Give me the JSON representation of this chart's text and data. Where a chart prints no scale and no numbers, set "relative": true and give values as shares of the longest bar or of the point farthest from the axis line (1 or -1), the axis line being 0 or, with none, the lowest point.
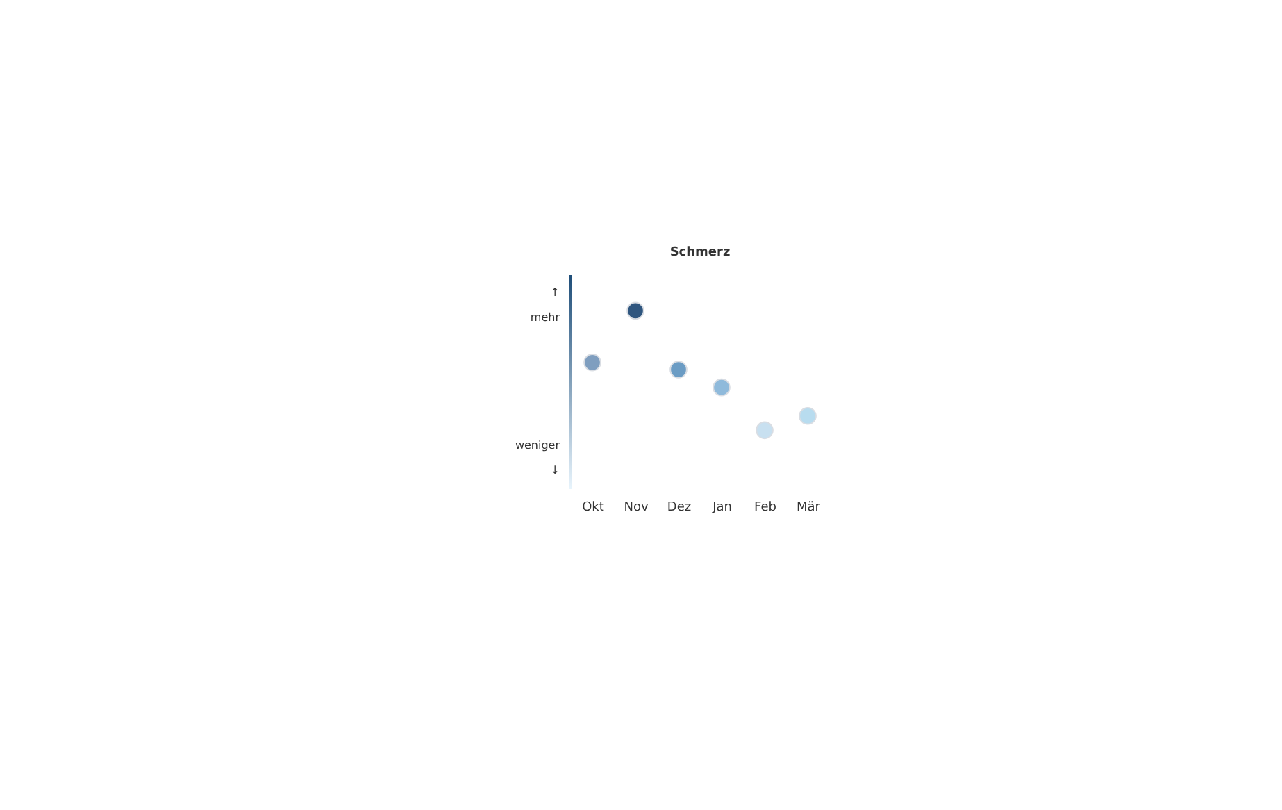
{
  "chart_data": {
    "type": "scatter",
    "title": "Schmerz",
    "relative": true,
    "marker": "circle",
    "categories": [
      "Okt",
      "Nov",
      "Dez",
      "Jan",
      "Feb",
      "Mär"
    ],
    "values": [
      0.71,
      1,
      0.67,
      0.57,
      0.33,
      0.41
    ],
    "colors": [
      "#7f9ebf",
      "#2f567f",
      "#6b9cc4",
      "#8fbadb",
      "#c8e0f0",
      "#b8dcef"
    ],
    "annotations": [
      "↑",
      "mehr",
      "weniger",
      "↓"
    ]
  }
}
